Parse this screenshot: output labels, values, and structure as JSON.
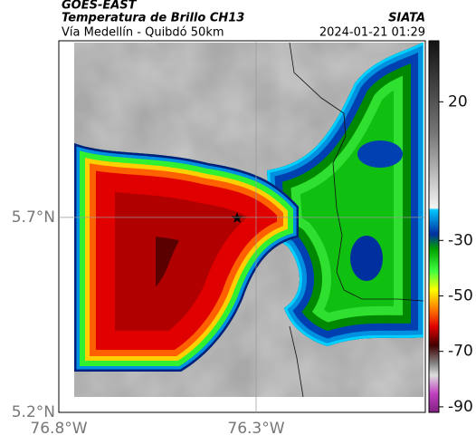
{
  "header": {
    "source": "GOES-EAST",
    "title": "Temperatura de Brillo CH13",
    "subtitle": "Vía Medellín - Quibdó 50km",
    "agency": "SIATA",
    "datetime": "2024-01-21 01:29"
  },
  "map": {
    "lonlim": [
      -76.8,
      -75.871
    ],
    "latlim": [
      5.2,
      6.153
    ],
    "lonticks": [
      {
        "value": -76.8,
        "label": "76.8°W"
      },
      {
        "value": -76.3,
        "label": "76.3°W"
      }
    ],
    "latticks": [
      {
        "value": 5.7,
        "label": "5.7°N"
      },
      {
        "value": 5.2,
        "label": "5.2°N"
      }
    ],
    "grid": true
  },
  "colorbar": {
    "lim": [
      -92,
      42
    ],
    "ticks": [
      20,
      -30,
      -50,
      -70,
      -90
    ]
  }
}
